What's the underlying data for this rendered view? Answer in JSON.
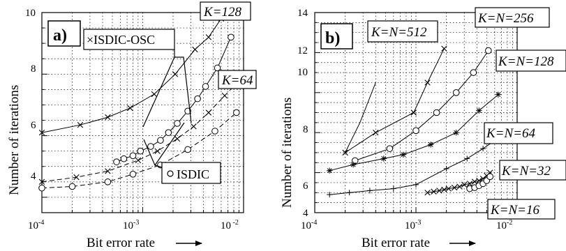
{
  "chart_data": [
    {
      "type": "line",
      "panel_label": "a)",
      "xlabel": "Bit error rate",
      "ylabel": "Number of iterations",
      "xscale": "log",
      "xlim": [
        0.0001,
        0.01
      ],
      "ylim": [
        3.5,
        10
      ],
      "grid": true,
      "x_tick_labels": [
        "10-4",
        "10-3",
        "10 -2"
      ],
      "y_tick_labels": [
        "4",
        "6",
        "8",
        "10"
      ],
      "annotations": [
        "×ISDIC-OSC",
        "○ ISDIC",
        "K=128",
        "K=64"
      ],
      "series": [
        {
          "label": "K=128",
          "group": "ISDIC-OSC",
          "marker": "x",
          "dash": "solid",
          "x": [
            0.0001,
            0.00024,
            0.00045,
            0.00075,
            0.0013,
            0.0021,
            0.0033,
            0.0045,
            0.006
          ],
          "y": [
            6.1,
            6.35,
            6.6,
            6.9,
            7.35,
            8.0,
            8.8,
            9.2,
            9.8
          ]
        },
        {
          "label": "K=128",
          "group": "ISDIC",
          "marker": "o",
          "dash": "solid",
          "x": [
            0.00055,
            0.00065,
            0.0008,
            0.00095,
            0.0012,
            0.0015,
            0.0018,
            0.0022,
            0.0028,
            0.0035,
            0.0042,
            0.0055,
            0.0075
          ],
          "y": [
            5.15,
            5.25,
            5.35,
            5.5,
            5.65,
            5.85,
            6.1,
            6.4,
            6.8,
            7.2,
            7.6,
            8.2,
            9.2
          ]
        },
        {
          "label": "K=64",
          "group": "ISDIC-OSC",
          "marker": "x",
          "dash": "dashed",
          "x": [
            0.0001,
            0.00022,
            0.00045,
            0.0009,
            0.0014,
            0.0022,
            0.0032,
            0.0045,
            0.0065,
            0.0085
          ],
          "y": [
            4.5,
            4.65,
            4.85,
            5.2,
            5.5,
            5.9,
            6.3,
            6.75,
            7.3,
            7.7
          ]
        },
        {
          "label": "K=64",
          "group": "ISDIC",
          "marker": "o",
          "dash": "dashed",
          "x": [
            0.0001,
            0.0002,
            0.00045,
            0.0008,
            0.0015,
            0.0028,
            0.0052,
            0.0085
          ],
          "y": [
            4.3,
            4.35,
            4.5,
            4.75,
            5.05,
            5.55,
            6.15,
            6.75
          ]
        }
      ]
    },
    {
      "type": "line",
      "panel_label": "b)",
      "xlabel": "Bit error rate",
      "ylabel": "Number of iterations",
      "xscale": "log",
      "xlim": [
        0.0001,
        0.01
      ],
      "ylim": [
        4,
        14
      ],
      "grid": true,
      "x_tick_labels": [
        "10-4",
        "10-3",
        "10-2"
      ],
      "y_tick_labels": [
        "4",
        "6",
        "8",
        "10",
        "12",
        "14"
      ],
      "series": [
        {
          "label": "K=N=512",
          "marker": "none",
          "x": [
            0.0002,
            0.00028,
            0.0004
          ],
          "y": [
            7.0,
            8.5,
            10.5
          ]
        },
        {
          "label": "K=N=256",
          "marker": "x",
          "x": [
            0.0002,
            0.0004,
            0.00095,
            0.0013,
            0.0019
          ],
          "y": [
            7.0,
            8.0,
            9.0,
            10.5,
            12.2
          ]
        },
        {
          "label": "K=N=128",
          "marker": "o",
          "x": [
            0.00025,
            0.00055,
            0.001,
            0.0016,
            0.0025,
            0.0037,
            0.0052
          ],
          "y": [
            6.6,
            7.2,
            8.1,
            9.0,
            10.0,
            11.0,
            12.1
          ]
        },
        {
          "label": "K=N=64",
          "marker": "*",
          "x": [
            0.00014,
            0.00024,
            0.00048,
            0.00075,
            0.0014,
            0.0025,
            0.0042,
            0.0065
          ],
          "y": [
            6.1,
            6.4,
            6.7,
            6.9,
            7.4,
            8.0,
            9.1,
            9.9
          ]
        },
        {
          "label": "K=N=32",
          "marker": "+",
          "x": [
            0.00014,
            0.00022,
            0.00035,
            0.0006,
            0.001,
            0.002,
            0.0032,
            0.0046,
            0.006
          ],
          "y": [
            4.9,
            5.0,
            5.1,
            5.2,
            5.4,
            6.2,
            6.7,
            7.2,
            7.6
          ]
        },
        {
          "label": "K=N=16",
          "marker": "x",
          "x": [
            0.0013,
            0.0015,
            0.0017,
            0.0019,
            0.0021,
            0.0024,
            0.0027,
            0.003,
            0.0034,
            0.0038,
            0.0042,
            0.0046,
            0.005,
            0.0054
          ],
          "y": [
            5.0,
            5.05,
            5.1,
            5.15,
            5.2,
            5.25,
            5.3,
            5.4,
            5.45,
            5.55,
            5.6,
            5.7,
            5.85,
            6.0
          ]
        },
        {
          "label": "K=N=16",
          "marker": "o",
          "x": [
            0.0034,
            0.0038,
            0.0042,
            0.0046,
            0.005,
            0.0054
          ],
          "y": [
            5.2,
            5.25,
            5.35,
            5.45,
            5.6,
            5.8
          ]
        }
      ]
    }
  ],
  "axis_title_x_a": "Bit error rate",
  "axis_title_y_a": "Number of iterations",
  "axis_title_x_b": "Bit error rate",
  "axis_title_y_b": "Number of iterations",
  "legend_osc_text": "×ISDIC-OSC",
  "legend_isdic_text": "ISDIC",
  "panel_a_label": "a)",
  "panel_b_label": "b)",
  "label_k128": "K=128",
  "label_k64": "K=64",
  "label_512": "K=N=512",
  "label_256": "K=N=256",
  "label_128": "K=N=128",
  "label_64": "K=N=64",
  "label_32": "K=N=32",
  "label_16": "K=N=16",
  "ticks_a": {
    "x0": "10",
    "x0s": "-4",
    "x1": "10",
    "x1s": "-3",
    "x2": "10",
    "x2s": " -2",
    "y": [
      "4",
      "6",
      "8",
      "10"
    ]
  },
  "ticks_b": {
    "x0": "10",
    "x0s": "-4",
    "x1": "10",
    "x1s": "-3",
    "x2": "10",
    "x2s": "-2",
    "y": [
      "4",
      "6",
      "8",
      "10",
      "12",
      "14"
    ]
  }
}
